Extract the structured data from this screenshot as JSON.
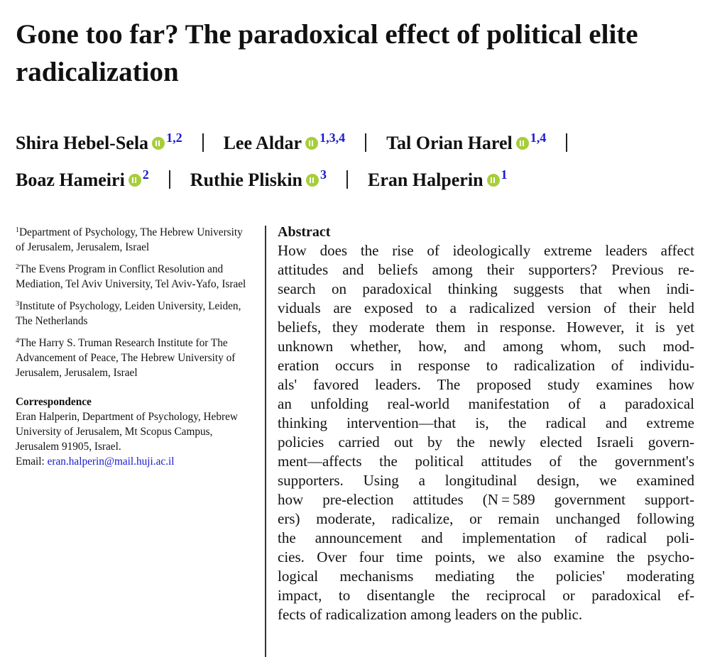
{
  "title": "Gone too far? The paradoxical effect of political elite radicalization",
  "authors": [
    {
      "name": "Shira Hebel-Sela",
      "affiliations": "1,2"
    },
    {
      "name": "Lee Aldar",
      "affiliations": "1,3,4"
    },
    {
      "name": "Tal Orian Harel",
      "affiliations": "1,4"
    },
    {
      "name": "Boaz Hameiri",
      "affiliations": "2"
    },
    {
      "name": "Ruthie Pliskin",
      "affiliations": "3"
    },
    {
      "name": "Eran Halperin",
      "affiliations": "1"
    }
  ],
  "affiliations": [
    {
      "number": "1",
      "text": "Department of Psychology, The Hebrew University of Jerusalem, Jerusalem, Israel"
    },
    {
      "number": "2",
      "text": "The Evens Program in Conflict Resolution and Mediation, Tel Aviv University, Tel Aviv-Yafo, Israel"
    },
    {
      "number": "3",
      "text": "Institute of Psychology, Leiden University, Leiden, The Netherlands"
    },
    {
      "number": "4",
      "text": "The Harry S. Truman Research Institute for The Advancement of Peace, The Hebrew University of Jerusalem, Jerusalem, Israel"
    }
  ],
  "correspondence": {
    "heading": "Correspondence",
    "text": "Eran Halperin, Department of Psychology, Hebrew University of Jerusalem, Mt Scopus Campus, Jerusalem 91905, Israel.",
    "email_label": "Email:",
    "email": "eran.halperin@mail.huji.ac.il"
  },
  "abstract": {
    "heading": "Abstract",
    "lines": [
      "How does the rise of ideologically extreme leaders affect",
      "attitudes and beliefs among their supporters? Previous re-",
      "search on paradoxical thinking suggests that when indi-",
      "viduals are exposed to a radicalized version of their held",
      "beliefs, they moderate them in response. However, it is yet",
      "unknown whether, how, and among whom, such mod-",
      "eration occurs in response to radicalization of individu-",
      "als' favored leaders. The proposed study examines how",
      "an unfolding real-world manifestation of a paradoxical",
      "thinking intervention—that is, the radical and extreme",
      "policies carried out by the newly elected Israeli govern-",
      "ment—affects the political attitudes of the government's",
      "supporters. Using a longitudinal design, we examined",
      "how pre-election attitudes (N = 589 government support-",
      "ers) moderate, radicalize, or remain unchanged following",
      "the announcement and implementation of radical poli-",
      "cies. Over four time points, we also examine the psycho-",
      "logical mechanisms mediating the policies' moderating",
      "impact, to disentangle the reciprocal or paradoxical ef-",
      "fects of radicalization among leaders on the public."
    ]
  }
}
